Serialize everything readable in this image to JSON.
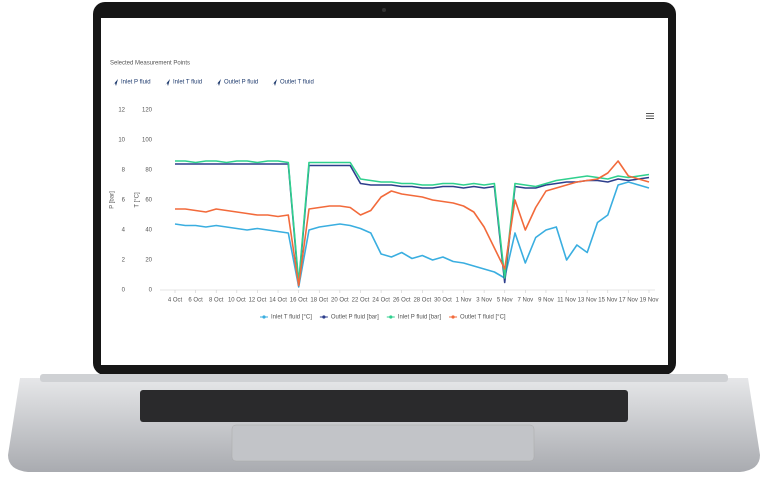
{
  "header": {
    "title": "Selected Measurement Points",
    "buttons": [
      "Inlet P fluid",
      "Inlet T fluid",
      "Outlet P fluid",
      "Outlet T fluid"
    ]
  },
  "chart_data": {
    "type": "line",
    "ylabel": "P [bar]",
    "y2label": "T [°C]",
    "ylim": [
      0,
      12
    ],
    "yticks": [
      0,
      2,
      4,
      6,
      8,
      10,
      12
    ],
    "y2lim": [
      0,
      120
    ],
    "y2ticks": [
      0,
      20,
      40,
      60,
      80,
      100,
      120
    ],
    "categories": [
      "4 Oct",
      null,
      "6 Oct",
      null,
      "8 Oct",
      null,
      "10 Oct",
      null,
      "12 Oct",
      null,
      "14 Oct",
      null,
      "16 Oct",
      null,
      "18 Oct",
      null,
      "20 Oct",
      null,
      "22 Oct",
      null,
      "24 Oct",
      null,
      "26 Oct",
      null,
      "28 Oct",
      null,
      "30 Oct",
      null,
      "1 Nov",
      null,
      "3 Nov",
      null,
      "5 Nov",
      null,
      "7 Nov",
      null,
      "9 Nov",
      null,
      "11 Nov",
      null,
      "13 Nov",
      null,
      "15 Nov",
      null,
      "17 Nov",
      null,
      "19 Nov"
    ],
    "series": [
      {
        "name": "Inlet T fluid [°C]",
        "color": "#3aaee0",
        "axis": "y2",
        "values": [
          44,
          43,
          43,
          42,
          43,
          42,
          41,
          40,
          41,
          40,
          39,
          38,
          2,
          40,
          42,
          43,
          44,
          43,
          41,
          38,
          24,
          22,
          25,
          21,
          23,
          20,
          22,
          19,
          18,
          16,
          14,
          12,
          8,
          38,
          18,
          35,
          40,
          42,
          20,
          30,
          25,
          45,
          50,
          70,
          72,
          70,
          68
        ]
      },
      {
        "name": "Outlet P fluid [bar]",
        "color": "#2d3e8c",
        "values": [
          8.4,
          8.4,
          8.4,
          8.4,
          8.4,
          8.4,
          8.4,
          8.4,
          8.4,
          8.4,
          8.4,
          8.4,
          0.3,
          8.3,
          8.3,
          8.3,
          8.3,
          8.3,
          7.1,
          7.0,
          7.0,
          7.0,
          6.9,
          6.9,
          6.8,
          6.8,
          6.9,
          6.9,
          6.8,
          6.9,
          6.8,
          6.9,
          0.5,
          6.9,
          6.8,
          6.8,
          7.0,
          7.1,
          7.2,
          7.2,
          7.3,
          7.3,
          7.2,
          7.4,
          7.3,
          7.4,
          7.5
        ]
      },
      {
        "name": "Inlet P fluid [bar]",
        "color": "#2fd08e",
        "values": [
          8.6,
          8.6,
          8.5,
          8.6,
          8.6,
          8.5,
          8.6,
          8.6,
          8.5,
          8.6,
          8.6,
          8.5,
          0.5,
          8.5,
          8.5,
          8.5,
          8.5,
          8.5,
          7.4,
          7.3,
          7.2,
          7.2,
          7.1,
          7.1,
          7.0,
          7.0,
          7.1,
          7.1,
          7.0,
          7.1,
          7.0,
          7.1,
          0.8,
          7.1,
          7.0,
          6.9,
          7.1,
          7.3,
          7.4,
          7.5,
          7.6,
          7.5,
          7.4,
          7.6,
          7.5,
          7.6,
          7.7
        ]
      },
      {
        "name": "Outlet T fluid [°C]",
        "color": "#f26a3b",
        "axis": "y2",
        "values": [
          54,
          54,
          53,
          52,
          54,
          53,
          52,
          51,
          50,
          50,
          49,
          50,
          3,
          54,
          55,
          56,
          56,
          55,
          50,
          53,
          62,
          66,
          64,
          63,
          62,
          60,
          59,
          58,
          56,
          52,
          42,
          28,
          14,
          60,
          40,
          55,
          66,
          68,
          70,
          72,
          73,
          74,
          78,
          86,
          76,
          74,
          72
        ]
      }
    ]
  }
}
